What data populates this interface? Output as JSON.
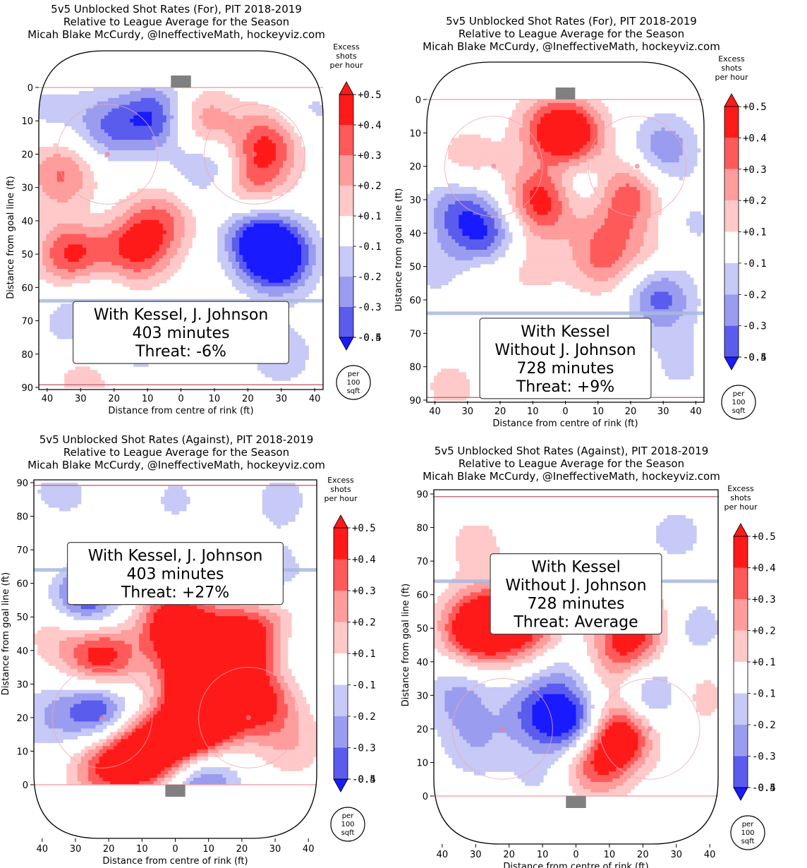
{
  "colors": {
    "red_strong": "#ff1a1a",
    "red_mid": "#ff5a5a",
    "red_light": "#ff9c9c",
    "red_pale": "#ffc9c9",
    "blue_pale": "#c7c9f6",
    "blue_light": "#9a9cf0",
    "blue_mid": "#5a5cee",
    "blue_strong": "#1a1aff",
    "rink_line_red": "#f0a8b0",
    "blue_line": "#aab8e0",
    "net": "#808080"
  },
  "colorbar": {
    "title_lines": [
      "Excess",
      "shots",
      "per hour"
    ],
    "levels": [
      "+0.5",
      "+0.4",
      "+0.3",
      "+0.2",
      "+0.1",
      "-0.1",
      "-0.2",
      "-0.3",
      "-0.4",
      "-0.5"
    ],
    "unit_lines": [
      "per",
      "100",
      "sqft"
    ]
  },
  "chart_data": [
    {
      "type": "heatmap",
      "title_lines": [
        "5v5 Unblocked Shot Rates (For), PIT 2018-2019",
        "Relative to League Average for the Season",
        "Micah Blake McCurdy, @IneffectiveMath, hockeyviz.com"
      ],
      "xlabel": "Distance from centre of rink (ft)",
      "ylabel": "Distance from goal line (ft)",
      "x_ticks": [
        "40",
        "30",
        "20",
        "10",
        "0",
        "10",
        "20",
        "30",
        "40"
      ],
      "y_ticks": [
        "0",
        "10",
        "20",
        "30",
        "40",
        "50",
        "60",
        "70",
        "80",
        "90"
      ],
      "orientation": "goal-top",
      "ylim": [
        0,
        90
      ],
      "xlim": [
        -42.5,
        42.5
      ],
      "annotation_lines": [
        "With Kessel, J. Johnson",
        "403 minutes",
        "Threat: -6%"
      ],
      "blobs": [
        {
          "x": -32,
          "y": 50,
          "v": 0.45
        },
        {
          "x": -14,
          "y": 49,
          "v": 0.35
        },
        {
          "x": -6,
          "y": 40,
          "v": 0.25
        },
        {
          "x": 26,
          "y": 17,
          "v": 0.35
        },
        {
          "x": 6,
          "y": 11,
          "v": 0.3
        },
        {
          "x": 21,
          "y": 30,
          "v": 0.25
        },
        {
          "x": -34,
          "y": 30,
          "v": 0.2
        },
        {
          "x": -37,
          "y": 22,
          "v": 0.15
        },
        {
          "x": 29,
          "y": 51,
          "v": -0.5
        },
        {
          "x": 22,
          "y": 44,
          "v": -0.3
        },
        {
          "x": -7,
          "y": 9,
          "v": -0.35
        },
        {
          "x": 8,
          "y": 23,
          "v": -0.25
        },
        {
          "x": -22,
          "y": 12,
          "v": -0.25
        },
        {
          "x": -32,
          "y": 70,
          "v": -0.15
        },
        {
          "x": 30,
          "y": 80,
          "v": -0.15
        },
        {
          "x": -14,
          "y": 80,
          "v": -0.12
        },
        {
          "x": -26,
          "y": 57,
          "v": -0.12
        },
        {
          "x": -30,
          "y": 39,
          "v": -0.12
        },
        {
          "x": 38,
          "y": 8,
          "v": -0.12
        },
        {
          "x": -40,
          "y": 8,
          "v": -0.12
        },
        {
          "x": -28,
          "y": 88,
          "v": 0.15
        }
      ]
    },
    {
      "type": "heatmap",
      "title_lines": [
        "5v5 Unblocked Shot Rates (For), PIT 2018-2019",
        "Relative to League Average for the Season",
        "Micah Blake McCurdy, @IneffectiveMath, hockeyviz.com"
      ],
      "xlabel": "Distance from centre of rink (ft)",
      "ylabel": "Distance from goal line (ft)",
      "x_ticks": [
        "40",
        "30",
        "20",
        "10",
        "0",
        "10",
        "20",
        "30",
        "40"
      ],
      "y_ticks": [
        "0",
        "10",
        "20",
        "30",
        "40",
        "50",
        "60",
        "70",
        "80",
        "90"
      ],
      "orientation": "goal-top",
      "ylim": [
        0,
        90
      ],
      "xlim": [
        -42.5,
        42.5
      ],
      "annotation_lines": [
        "With Kessel",
        "Without J. Johnson",
        "728 minutes",
        "Threat: +9%"
      ],
      "blobs": [
        {
          "x": 2,
          "y": 11,
          "v": 0.45
        },
        {
          "x": -6,
          "y": 8,
          "v": 0.2
        },
        {
          "x": -7,
          "y": 30,
          "v": 0.45
        },
        {
          "x": 20,
          "y": 28,
          "v": 0.3
        },
        {
          "x": 12,
          "y": 48,
          "v": 0.25
        },
        {
          "x": 28,
          "y": 48,
          "v": 0.2
        },
        {
          "x": -30,
          "y": 18,
          "v": 0.15
        },
        {
          "x": -25,
          "y": 55,
          "v": 0.12
        },
        {
          "x": -10,
          "y": 50,
          "v": 0.12
        },
        {
          "x": -35,
          "y": 86,
          "v": 0.12
        },
        {
          "x": 12,
          "y": 38,
          "v": 0.1
        },
        {
          "x": -33,
          "y": 33,
          "v": -0.25
        },
        {
          "x": -24,
          "y": 41,
          "v": -0.3
        },
        {
          "x": 30,
          "y": 15,
          "v": -0.25
        },
        {
          "x": 28,
          "y": 55,
          "v": -0.25
        },
        {
          "x": 30,
          "y": 62,
          "v": -0.15
        },
        {
          "x": 2,
          "y": 24,
          "v": -0.2
        },
        {
          "x": -38,
          "y": 52,
          "v": -0.12
        },
        {
          "x": 38,
          "y": 38,
          "v": -0.12
        },
        {
          "x": -18,
          "y": 68,
          "v": -0.1
        },
        {
          "x": 35,
          "y": 80,
          "v": -0.1
        }
      ]
    },
    {
      "type": "heatmap",
      "title_lines": [
        "5v5 Unblocked Shot Rates (Against), PIT 2018-2019",
        "Relative to League Average for the Season",
        "Micah Blake McCurdy, @IneffectiveMath, hockeyviz.com"
      ],
      "xlabel": "Distance from centre of rink (ft)",
      "ylabel": "Distance from goal line (ft)",
      "x_ticks": [
        "40",
        "30",
        "20",
        "10",
        "0",
        "10",
        "20",
        "30",
        "40"
      ],
      "y_ticks": [
        "90",
        "80",
        "70",
        "60",
        "50",
        "40",
        "30",
        "20",
        "10",
        "0"
      ],
      "orientation": "goal-bottom",
      "ylim": [
        0,
        90
      ],
      "xlim": [
        -42.5,
        42.5
      ],
      "annotation_lines": [
        "With Kessel, J. Johnson",
        "403 minutes",
        "Threat: +27%"
      ],
      "blobs": [
        {
          "x": 3,
          "y": 14,
          "v": 0.5
        },
        {
          "x": -10,
          "y": 9,
          "v": 0.5
        },
        {
          "x": 10,
          "y": 22,
          "v": 0.5
        },
        {
          "x": 0,
          "y": 48,
          "v": 0.5
        },
        {
          "x": 18,
          "y": 42,
          "v": 0.5
        },
        {
          "x": 5,
          "y": 34,
          "v": 0.4
        },
        {
          "x": -22,
          "y": 37,
          "v": 0.45
        },
        {
          "x": 25,
          "y": 25,
          "v": 0.4
        },
        {
          "x": -22,
          "y": 5,
          "v": 0.3
        },
        {
          "x": -35,
          "y": 45,
          "v": 0.15
        },
        {
          "x": 30,
          "y": 48,
          "v": 0.2
        },
        {
          "x": 35,
          "y": 12,
          "v": 0.15
        },
        {
          "x": -38,
          "y": 73,
          "v": 0.12
        },
        {
          "x": -27,
          "y": 56,
          "v": -0.4
        },
        {
          "x": -23,
          "y": 23,
          "v": -0.4
        },
        {
          "x": 8,
          "y": 2,
          "v": -0.35
        },
        {
          "x": -35,
          "y": 85,
          "v": -0.15
        },
        {
          "x": 32,
          "y": 85,
          "v": -0.12
        },
        {
          "x": 30,
          "y": 62,
          "v": -0.15
        },
        {
          "x": -38,
          "y": 20,
          "v": -0.15
        },
        {
          "x": 38,
          "y": 42,
          "v": -0.12
        },
        {
          "x": 0,
          "y": 85,
          "v": -0.1
        }
      ]
    },
    {
      "type": "heatmap",
      "title_lines": [
        "5v5 Unblocked Shot Rates (Against), PIT 2018-2019",
        "Relative to League Average for the Season",
        "Micah Blake McCurdy, @IneffectiveMath, hockeyviz.com"
      ],
      "xlabel": "Distance from centre of rink (ft)",
      "ylabel": "Distance from goal line (ft)",
      "x_ticks": [
        "40",
        "30",
        "20",
        "10",
        "0",
        "10",
        "20",
        "30",
        "40"
      ],
      "y_ticks": [
        "90",
        "80",
        "70",
        "60",
        "50",
        "40",
        "30",
        "20",
        "10",
        "0"
      ],
      "orientation": "goal-bottom",
      "ylim": [
        0,
        90
      ],
      "xlim": [
        -42.5,
        42.5
      ],
      "annotation_lines": [
        "With Kessel",
        "Without J. Johnson",
        "728 minutes",
        "Threat: Average"
      ],
      "blobs": [
        {
          "x": -30,
          "y": 50,
          "v": 0.5
        },
        {
          "x": -20,
          "y": 52,
          "v": 0.3
        },
        {
          "x": -12,
          "y": 48,
          "v": 0.2
        },
        {
          "x": 13,
          "y": 19,
          "v": 0.5
        },
        {
          "x": 5,
          "y": 10,
          "v": 0.35
        },
        {
          "x": 15,
          "y": 45,
          "v": 0.3
        },
        {
          "x": 20,
          "y": 52,
          "v": 0.2
        },
        {
          "x": 36,
          "y": 30,
          "v": 0.15
        },
        {
          "x": -30,
          "y": 75,
          "v": 0.12
        },
        {
          "x": 10,
          "y": 35,
          "v": 0.1
        },
        {
          "x": 0,
          "y": 21,
          "v": -0.45
        },
        {
          "x": -12,
          "y": 25,
          "v": -0.25
        },
        {
          "x": 22,
          "y": 30,
          "v": -0.3
        },
        {
          "x": -35,
          "y": 30,
          "v": -0.2
        },
        {
          "x": -30,
          "y": 15,
          "v": -0.15
        },
        {
          "x": 35,
          "y": 50,
          "v": -0.15
        },
        {
          "x": 30,
          "y": 78,
          "v": -0.12
        },
        {
          "x": -5,
          "y": 38,
          "v": -0.15
        },
        {
          "x": -10,
          "y": 5,
          "v": -0.1
        }
      ]
    }
  ]
}
